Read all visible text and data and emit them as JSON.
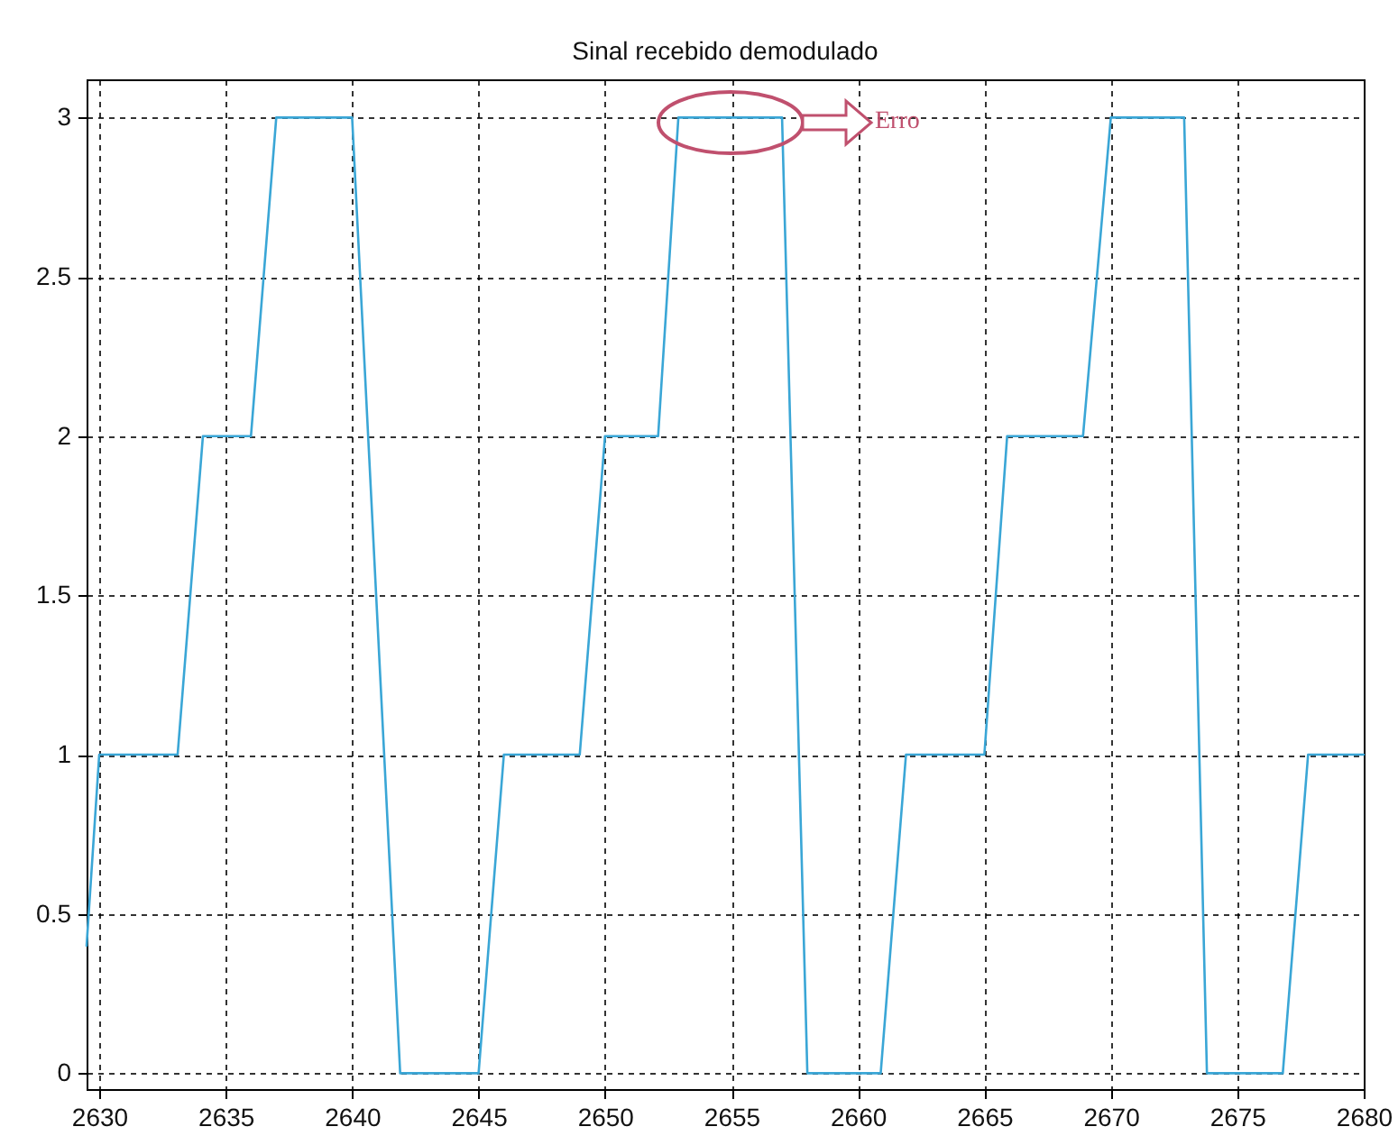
{
  "chart_data": {
    "type": "line",
    "title": "Sinal recebido demodulado",
    "series": [
      {
        "color": "#3aa6d6",
        "x": [
          2629.5,
          2630,
          2633.1,
          2634.1,
          2636,
          2637,
          2640,
          2641.9,
          2645,
          2646,
          2649,
          2650,
          2652.1,
          2652.9,
          2657,
          2658,
          2660.9,
          2661.9,
          2665,
          2665.9,
          2668.9,
          2670,
          2672.9,
          2673.8,
          2676.8,
          2677.8,
          2680
        ],
        "values": [
          0.4,
          1,
          1,
          2,
          2,
          3,
          3,
          0,
          0,
          1,
          1,
          2,
          2,
          3,
          3,
          0,
          0,
          1,
          1,
          2,
          2,
          3,
          3,
          0,
          0,
          1,
          1
        ]
      }
    ],
    "xlim": [
      2629.5,
      2680
    ],
    "xticks": [
      2630,
      2635,
      2640,
      2645,
      2650,
      2655,
      2660,
      2665,
      2670,
      2675,
      2680
    ],
    "ylim": [
      -0.05,
      3.12
    ],
    "yticks": [
      0,
      0.5,
      1,
      1.5,
      2,
      2.5,
      3
    ],
    "grid": true,
    "marker": "none",
    "line_style": "solid",
    "annotations": [
      "Erro"
    ]
  }
}
